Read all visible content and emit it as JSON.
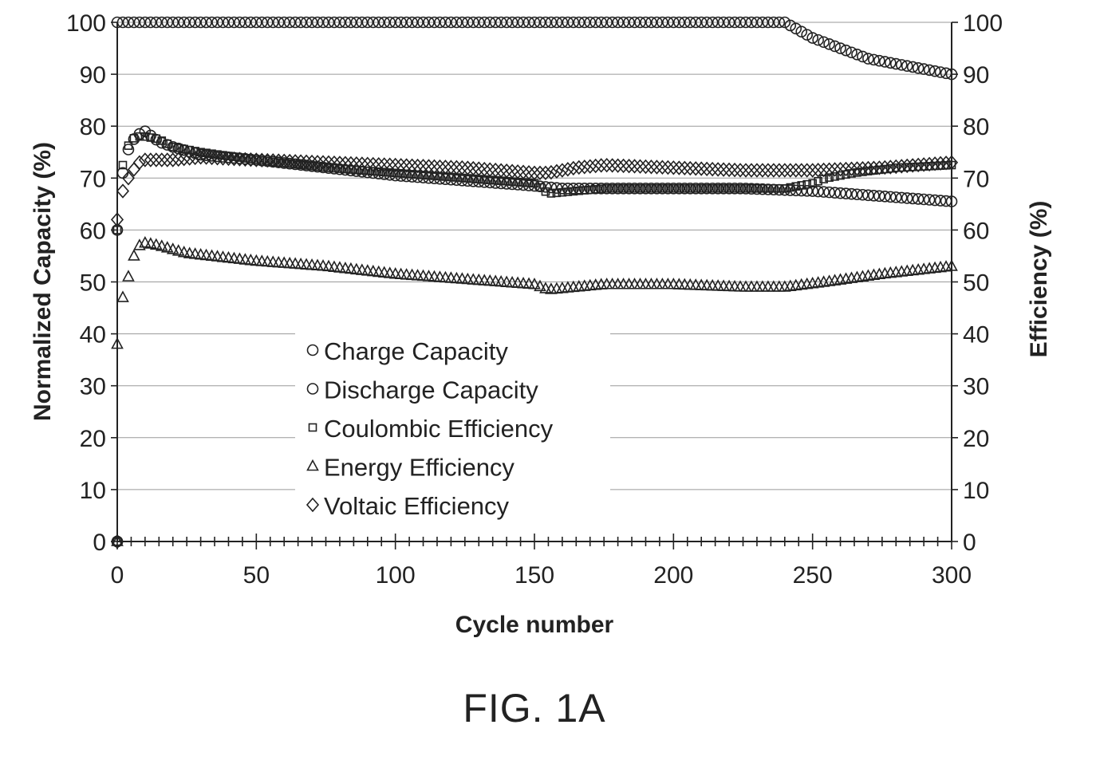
{
  "chart_data": {
    "type": "scatter",
    "title": "",
    "xlabel": "Cycle number",
    "ylabel": "Normalized Capacity (%)",
    "y2label": "Efficiency (%)",
    "xlim": [
      0,
      300
    ],
    "ylim": [
      0,
      100
    ],
    "y2lim": [
      0,
      100
    ],
    "xticks": [
      "0",
      "50",
      "100",
      "150",
      "200",
      "250",
      "300"
    ],
    "yticks": [
      "0",
      "10",
      "20",
      "30",
      "40",
      "50",
      "60",
      "70",
      "80",
      "90",
      "100"
    ],
    "grid": true,
    "legend_position": "center-left",
    "series": [
      {
        "name": "Charge Capacity",
        "marker": "circle",
        "points": [
          [
            0,
            100
          ],
          [
            240,
            100
          ],
          [
            250,
            97
          ],
          [
            260,
            95
          ],
          [
            270,
            93
          ],
          [
            280,
            92
          ],
          [
            290,
            91
          ],
          [
            300,
            90
          ]
        ]
      },
      {
        "name": "Discharge Capacity",
        "marker": "circle-bold",
        "points": [
          [
            0,
            60
          ],
          [
            1,
            68
          ],
          [
            3,
            74
          ],
          [
            5,
            77
          ],
          [
            8,
            78.5
          ],
          [
            10,
            79
          ],
          [
            15,
            77
          ],
          [
            20,
            76
          ],
          [
            30,
            74.5
          ],
          [
            50,
            73.5
          ],
          [
            75,
            72
          ],
          [
            100,
            70.5
          ],
          [
            125,
            69.5
          ],
          [
            150,
            68.5
          ],
          [
            160,
            68
          ],
          [
            175,
            68
          ],
          [
            200,
            68
          ],
          [
            225,
            68
          ],
          [
            250,
            67.5
          ],
          [
            275,
            66.5
          ],
          [
            300,
            65.5
          ]
        ]
      },
      {
        "name": "Coulombic Efficiency",
        "marker": "square",
        "points": [
          [
            0,
            60
          ],
          [
            1,
            70
          ],
          [
            3,
            75
          ],
          [
            5,
            77.5
          ],
          [
            8,
            78
          ],
          [
            10,
            78
          ],
          [
            15,
            77.5
          ],
          [
            20,
            76
          ],
          [
            30,
            75
          ],
          [
            50,
            73.5
          ],
          [
            75,
            72
          ],
          [
            100,
            71
          ],
          [
            125,
            70
          ],
          [
            150,
            69
          ],
          [
            155,
            67
          ],
          [
            175,
            68
          ],
          [
            200,
            68
          ],
          [
            225,
            68
          ],
          [
            240,
            68
          ],
          [
            250,
            69
          ],
          [
            255,
            70
          ],
          [
            265,
            71
          ],
          [
            280,
            72
          ],
          [
            300,
            72.5
          ]
        ]
      },
      {
        "name": "Energy Efficiency",
        "marker": "triangle",
        "points": [
          [
            0,
            38
          ],
          [
            2,
            47
          ],
          [
            4,
            51
          ],
          [
            6,
            55
          ],
          [
            8,
            57
          ],
          [
            10,
            57.5
          ],
          [
            15,
            57
          ],
          [
            25,
            55.5
          ],
          [
            50,
            54
          ],
          [
            75,
            53
          ],
          [
            100,
            51.5
          ],
          [
            125,
            50.5
          ],
          [
            150,
            49.5
          ],
          [
            155,
            48.5
          ],
          [
            175,
            49.5
          ],
          [
            200,
            49.5
          ],
          [
            225,
            49
          ],
          [
            240,
            49
          ],
          [
            255,
            50
          ],
          [
            275,
            51.5
          ],
          [
            300,
            53
          ]
        ]
      },
      {
        "name": "Voltaic Efficiency",
        "marker": "diamond",
        "points": [
          [
            0,
            62
          ],
          [
            1,
            66
          ],
          [
            3,
            69
          ],
          [
            5,
            71
          ],
          [
            8,
            73
          ],
          [
            10,
            73.5
          ],
          [
            20,
            73.5
          ],
          [
            30,
            74
          ],
          [
            50,
            73.5
          ],
          [
            75,
            73
          ],
          [
            100,
            72.5
          ],
          [
            125,
            72
          ],
          [
            150,
            71
          ],
          [
            155,
            71
          ],
          [
            165,
            72
          ],
          [
            175,
            72.5
          ],
          [
            200,
            72
          ],
          [
            225,
            71.5
          ],
          [
            250,
            71.5
          ],
          [
            275,
            72
          ],
          [
            300,
            73
          ]
        ]
      }
    ]
  },
  "caption": "FIG. 1A"
}
